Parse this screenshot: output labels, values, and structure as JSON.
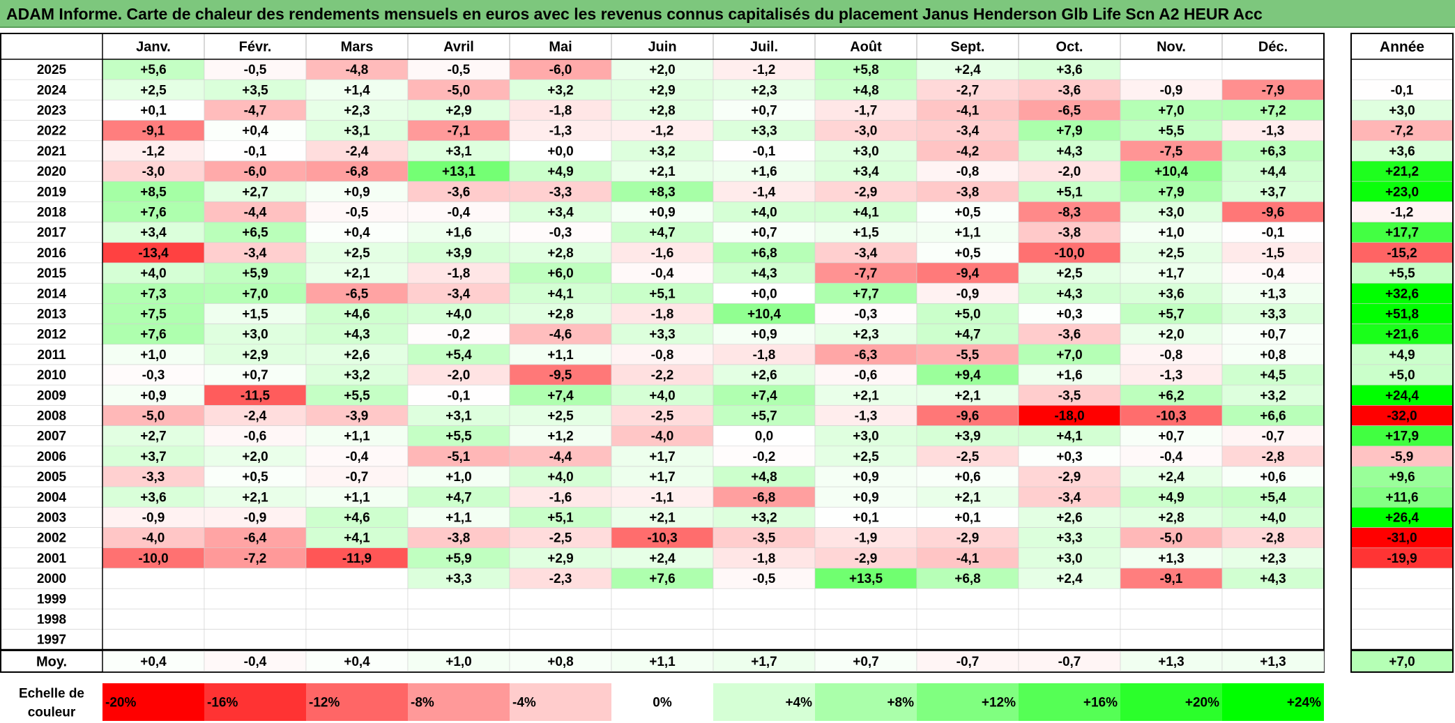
{
  "title": "ADAM Informe. Carte de chaleur des rendements mensuels en euros avec les revenus connus capitalisés du placement Janus Henderson Glb Life Scn A2 HEUR Acc",
  "chart_data": {
    "type": "heatmap",
    "title": "ADAM Informe. Carte de chaleur des rendements mensuels en euros avec les revenus connus capitalisés du placement Janus Henderson Glb Life Scn A2 HEUR Acc",
    "months": [
      "Janv.",
      "Févr.",
      "Mars",
      "Avril",
      "Mai",
      "Juin",
      "Juil.",
      "Août",
      "Sept.",
      "Oct.",
      "Nov.",
      "Déc."
    ],
    "year_header": "Année",
    "years": [
      "2025",
      "2024",
      "2023",
      "2022",
      "2021",
      "2020",
      "2019",
      "2018",
      "2017",
      "2016",
      "2015",
      "2014",
      "2013",
      "2012",
      "2011",
      "2010",
      "2009",
      "2008",
      "2007",
      "2006",
      "2005",
      "2004",
      "2003",
      "2002",
      "2001",
      "2000",
      "1999",
      "1998",
      "1997"
    ],
    "monthly": [
      [
        "+5,6",
        "-0,5",
        "-4,8",
        "-0,5",
        "-6,0",
        "+2,0",
        "-1,2",
        "+5,8",
        "+2,4",
        "+3,6",
        "",
        ""
      ],
      [
        "+2,5",
        "+3,5",
        "+1,4",
        "-5,0",
        "+3,2",
        "+2,9",
        "+2,3",
        "+4,8",
        "-2,7",
        "-3,6",
        "-0,9",
        "-7,9"
      ],
      [
        "+0,1",
        "-4,7",
        "+2,3",
        "+2,9",
        "-1,8",
        "+2,8",
        "+0,7",
        "-1,7",
        "-4,1",
        "-6,5",
        "+7,0",
        "+7,2"
      ],
      [
        "-9,1",
        "+0,4",
        "+3,1",
        "-7,1",
        "-1,3",
        "-1,2",
        "+3,3",
        "-3,0",
        "-3,4",
        "+7,9",
        "+5,5",
        "-1,3"
      ],
      [
        "-1,2",
        "-0,1",
        "-2,4",
        "+3,1",
        "+0,0",
        "+3,2",
        "-0,1",
        "+3,0",
        "-4,2",
        "+4,3",
        "-7,5",
        "+6,3"
      ],
      [
        "-3,0",
        "-6,0",
        "-6,8",
        "+13,1",
        "+4,9",
        "+2,1",
        "+1,6",
        "+3,4",
        "-0,8",
        "-2,0",
        "+10,4",
        "+4,4"
      ],
      [
        "+8,5",
        "+2,7",
        "+0,9",
        "-3,6",
        "-3,3",
        "+8,3",
        "-1,4",
        "-2,9",
        "-3,8",
        "+5,1",
        "+7,9",
        "+3,7"
      ],
      [
        "+7,6",
        "-4,4",
        "-0,5",
        "-0,4",
        "+3,4",
        "+0,9",
        "+4,0",
        "+4,1",
        "+0,5",
        "-8,3",
        "+3,0",
        "-9,6"
      ],
      [
        "+3,4",
        "+6,5",
        "+0,4",
        "+1,6",
        "-0,3",
        "+4,7",
        "+0,7",
        "+1,5",
        "+1,1",
        "-3,8",
        "+1,0",
        "-0,1"
      ],
      [
        "-13,4",
        "-3,4",
        "+2,5",
        "+3,9",
        "+2,8",
        "-1,6",
        "+6,8",
        "-3,4",
        "+0,5",
        "-10,0",
        "+2,5",
        "-1,5"
      ],
      [
        "+4,0",
        "+5,9",
        "+2,1",
        "-1,8",
        "+6,0",
        "-0,4",
        "+4,3",
        "-7,7",
        "-9,4",
        "+2,5",
        "+1,7",
        "-0,4"
      ],
      [
        "+7,3",
        "+7,0",
        "-6,5",
        "-3,4",
        "+4,1",
        "+5,1",
        "+0,0",
        "+7,7",
        "-0,9",
        "+4,3",
        "+3,6",
        "+1,3"
      ],
      [
        "+7,5",
        "+1,5",
        "+4,6",
        "+4,0",
        "+2,8",
        "-1,8",
        "+10,4",
        "-0,3",
        "+5,0",
        "+0,3",
        "+5,7",
        "+3,3"
      ],
      [
        "+7,6",
        "+3,0",
        "+4,3",
        "-0,2",
        "-4,6",
        "+3,3",
        "+0,9",
        "+2,3",
        "+4,7",
        "-3,6",
        "+2,0",
        "+0,7"
      ],
      [
        "+1,0",
        "+2,9",
        "+2,6",
        "+5,4",
        "+1,1",
        "-0,8",
        "-1,8",
        "-6,3",
        "-5,5",
        "+7,0",
        "-0,8",
        "+0,8"
      ],
      [
        "-0,3",
        "+0,7",
        "+3,2",
        "-2,0",
        "-9,5",
        "-2,2",
        "+2,6",
        "-0,6",
        "+9,4",
        "+1,6",
        "-1,3",
        "+4,5"
      ],
      [
        "+0,9",
        "-11,5",
        "+5,5",
        "-0,1",
        "+7,4",
        "+4,0",
        "+7,4",
        "+2,1",
        "+2,1",
        "-3,5",
        "+6,2",
        "+3,2"
      ],
      [
        "-5,0",
        "-2,4",
        "-3,9",
        "+3,1",
        "+2,5",
        "-2,5",
        "+5,7",
        "-1,3",
        "-9,6",
        "-18,0",
        "-10,3",
        "+6,6"
      ],
      [
        "+2,7",
        "-0,6",
        "+1,1",
        "+5,5",
        "+1,2",
        "-4,0",
        "0,0",
        "+3,0",
        "+3,9",
        "+4,1",
        "+0,7",
        "-0,7"
      ],
      [
        "+3,7",
        "+2,0",
        "-0,4",
        "-5,1",
        "-4,4",
        "+1,7",
        "-0,2",
        "+2,5",
        "-2,5",
        "+0,3",
        "-0,4",
        "-2,8"
      ],
      [
        "-3,3",
        "+0,5",
        "-0,7",
        "+1,0",
        "+4,0",
        "+1,7",
        "+4,8",
        "+0,9",
        "+0,6",
        "-2,9",
        "+2,4",
        "+0,6"
      ],
      [
        "+3,6",
        "+2,1",
        "+1,1",
        "+4,7",
        "-1,6",
        "-1,1",
        "-6,8",
        "+0,9",
        "+2,1",
        "-3,4",
        "+4,9",
        "+5,4"
      ],
      [
        "-0,9",
        "-0,9",
        "+4,6",
        "+1,1",
        "+5,1",
        "+2,1",
        "+3,2",
        "+0,1",
        "+0,1",
        "+2,6",
        "+2,8",
        "+4,0"
      ],
      [
        "-4,0",
        "-6,4",
        "+4,1",
        "-3,8",
        "-2,5",
        "-10,3",
        "-3,5",
        "-1,9",
        "-2,9",
        "+3,3",
        "-5,0",
        "-2,8"
      ],
      [
        "-10,0",
        "-7,2",
        "-11,9",
        "+5,9",
        "+2,9",
        "+2,4",
        "-1,8",
        "-2,9",
        "-4,1",
        "+3,0",
        "+1,3",
        "+2,3"
      ],
      [
        "",
        "",
        "",
        "+3,3",
        "-2,3",
        "+7,6",
        "-0,5",
        "+13,5",
        "+6,8",
        "+2,4",
        "-9,1",
        "+4,3"
      ],
      [
        "",
        "",
        "",
        "",
        "",
        "",
        "",
        "",
        "",
        "",
        "",
        ""
      ],
      [
        "",
        "",
        "",
        "",
        "",
        "",
        "",
        "",
        "",
        "",
        "",
        ""
      ],
      [
        "",
        "",
        "",
        "",
        "",
        "",
        "",
        "",
        "",
        "",
        "",
        ""
      ]
    ],
    "annual": [
      "",
      "-0,1",
      "+3,0",
      "-7,2",
      "+3,6",
      "+21,2",
      "+23,0",
      "-1,2",
      "+17,7",
      "-15,2",
      "+5,5",
      "+32,6",
      "+51,8",
      "+21,6",
      "+4,9",
      "+5,0",
      "+24,4",
      "-32,0",
      "+17,9",
      "-5,9",
      "+9,6",
      "+11,6",
      "+26,4",
      "-31,0",
      "-19,9",
      "",
      "",
      "",
      ""
    ],
    "average_label": "Moy.",
    "averages": [
      "+0,4",
      "-0,4",
      "+0,4",
      "+1,0",
      "+0,8",
      "+1,1",
      "+1,7",
      "+0,7",
      "-0,7",
      "-0,7",
      "+1,3",
      "+1,3"
    ],
    "average_annual": "+7,0",
    "scale_label": [
      "Echelle de",
      "couleur"
    ],
    "scale": [
      "-20%",
      "-16%",
      "-12%",
      "-8%",
      "-4%",
      "0%",
      "+4%",
      "+8%",
      "+12%",
      "+16%",
      "+20%",
      "+24%"
    ],
    "colors": {
      "negative": "#ff0000",
      "neutral": "#ffffff",
      "positive": "#00ff00",
      "title_bg": "#7dc77d"
    }
  }
}
